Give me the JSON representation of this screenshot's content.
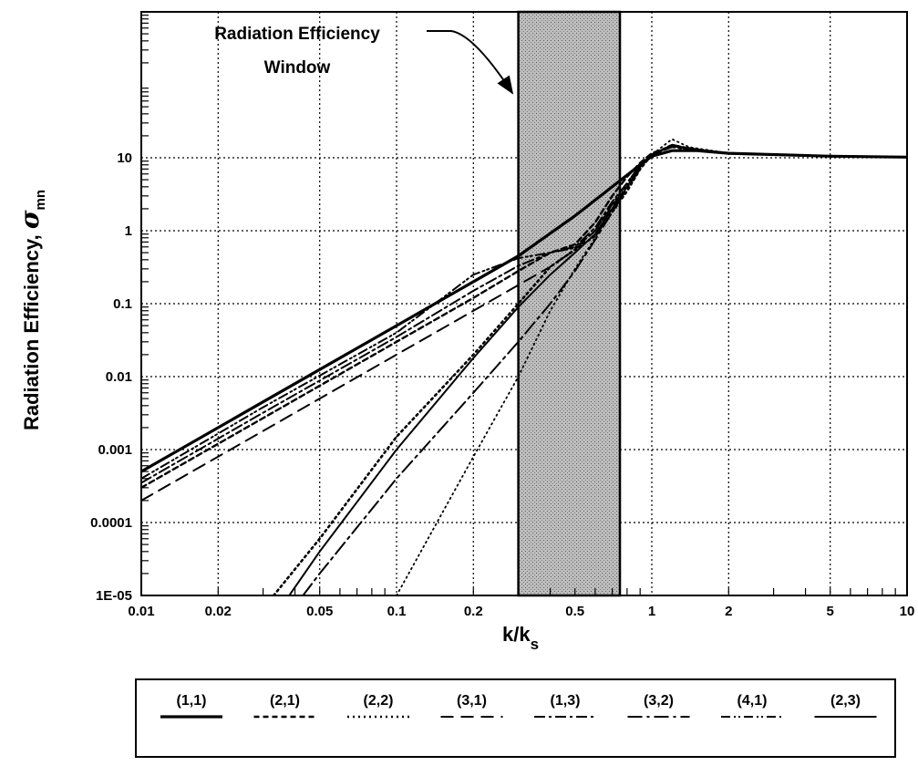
{
  "chart_data": {
    "type": "line",
    "title": "",
    "xlabel": "k/k",
    "xlabel_sub": "s",
    "ylabel": "Radiation Efficiency, ",
    "ylabel_symbol": "σ",
    "ylabel_sub": "mn",
    "x_scale": "log",
    "y_scale": "log",
    "xlim": [
      0.01,
      10
    ],
    "ylim": [
      1e-05,
      1000
    ],
    "grid": true,
    "x_ticks": [
      0.01,
      0.02,
      0.05,
      0.1,
      0.2,
      0.5,
      1,
      2,
      5,
      10
    ],
    "x_tick_labels": [
      "0.01",
      "0.02",
      "0.05",
      "0.1",
      "0.2",
      "0.5",
      "1",
      "2",
      "5",
      "10"
    ],
    "y_ticks": [
      1e-05,
      0.0001,
      0.001,
      0.01,
      0.1,
      1,
      10
    ],
    "y_tick_labels": [
      "1E-05",
      "0.0001",
      "0.001",
      "0.01",
      "0.1",
      "1",
      "10"
    ],
    "window": {
      "label_line1": "Radiation Efficiency",
      "label_line2": "Window",
      "x_range": [
        0.3,
        0.75
      ]
    },
    "legend_position": "bottom",
    "series": [
      {
        "name": "(1,1)",
        "style": "solid-thick",
        "x": [
          0.01,
          0.03,
          0.1,
          0.3,
          0.5,
          0.7,
          0.9,
          1.0,
          1.2,
          1.5,
          2,
          5,
          10
        ],
        "y": [
          0.0005,
          0.0045,
          0.05,
          0.45,
          1.6,
          4.0,
          8.0,
          10.5,
          12.5,
          12.5,
          11.5,
          10.5,
          10.2
        ]
      },
      {
        "name": "(2,1)",
        "style": "dashed-short",
        "x": [
          0.01,
          0.03,
          0.1,
          0.2,
          0.3,
          0.4,
          0.5,
          0.6,
          0.7,
          0.8,
          0.9,
          1.0,
          1.2,
          1.5,
          2,
          5,
          10
        ],
        "y": [
          0.0003,
          0.0027,
          0.03,
          0.12,
          0.28,
          0.5,
          0.65,
          1.3,
          3.0,
          5.5,
          8.5,
          11.5,
          14.5,
          13.0,
          11.5,
          10.5,
          10.2
        ]
      },
      {
        "name": "(2,2)",
        "style": "dotted",
        "x": [
          0.033,
          0.05,
          0.1,
          0.2,
          0.3,
          0.4,
          0.5,
          0.6,
          0.7,
          0.8,
          0.9,
          1.0,
          1.2,
          1.4,
          2,
          5,
          10
        ],
        "y": [
          1e-05,
          6e-05,
          0.0015,
          0.02,
          0.1,
          0.32,
          0.55,
          0.85,
          1.8,
          3.5,
          7.0,
          11.0,
          15.0,
          13.0,
          11.5,
          10.5,
          10.2
        ]
      },
      {
        "name": "(3,1)",
        "style": "dashed-long",
        "x": [
          0.01,
          0.03,
          0.1,
          0.2,
          0.3,
          0.4,
          0.5,
          0.6,
          0.7,
          0.8,
          0.9,
          1.0,
          1.2,
          1.5,
          2,
          5,
          10
        ],
        "y": [
          0.0002,
          0.0018,
          0.02,
          0.08,
          0.18,
          0.32,
          0.55,
          1.0,
          2.2,
          4.0,
          7.5,
          11.0,
          15.0,
          13.0,
          11.5,
          10.5,
          10.2
        ]
      },
      {
        "name": "(1,3)",
        "style": "dash-dot",
        "x": [
          0.01,
          0.03,
          0.1,
          0.2,
          0.3,
          0.4,
          0.5,
          0.6,
          0.7,
          0.8,
          0.9,
          1.0,
          1.2,
          1.5,
          2,
          5,
          10
        ],
        "y": [
          0.00035,
          0.0032,
          0.035,
          0.15,
          0.33,
          0.5,
          0.6,
          1.1,
          2.5,
          4.5,
          8.0,
          11.0,
          14.0,
          12.5,
          11.5,
          10.5,
          10.2
        ]
      },
      {
        "name": "(3,2)",
        "style": "dash-dot-long",
        "x": [
          0.043,
          0.05,
          0.1,
          0.2,
          0.3,
          0.4,
          0.5,
          0.6,
          0.7,
          0.8,
          0.9,
          1.0,
          1.2,
          1.4,
          2,
          5,
          10
        ],
        "y": [
          1e-05,
          2e-05,
          0.0004,
          0.006,
          0.03,
          0.1,
          0.28,
          0.75,
          1.8,
          3.8,
          7.0,
          11.0,
          15.0,
          13.0,
          11.5,
          10.5,
          10.2
        ]
      },
      {
        "name": "(4,1)",
        "style": "dash-dot-dot",
        "x": [
          0.01,
          0.03,
          0.1,
          0.2,
          0.3,
          0.4,
          0.5,
          0.6,
          0.7,
          0.8,
          0.9,
          1.0,
          1.2,
          1.5,
          2,
          5,
          10
        ],
        "y": [
          0.0004,
          0.0038,
          0.04,
          0.25,
          0.42,
          0.5,
          0.58,
          1.0,
          2.3,
          4.5,
          8.0,
          11.0,
          15.0,
          13.0,
          11.5,
          10.5,
          10.2
        ]
      },
      {
        "name": "(2,3)",
        "style": "solid",
        "x": [
          0.038,
          0.05,
          0.1,
          0.2,
          0.3,
          0.4,
          0.5,
          0.6,
          0.7,
          0.8,
          0.9,
          1.0,
          1.2,
          1.5,
          2,
          5,
          10
        ],
        "y": [
          1e-05,
          4e-05,
          0.001,
          0.018,
          0.09,
          0.25,
          0.5,
          0.9,
          2.0,
          4.0,
          7.5,
          11.0,
          14.5,
          13.0,
          11.5,
          10.5,
          10.2
        ]
      },
      {
        "name": "",
        "style": "dotted-thin",
        "x": [
          0.1,
          0.2,
          0.3,
          0.4,
          0.5,
          0.6,
          0.7,
          0.8,
          0.9,
          1.0,
          1.2,
          1.4,
          2,
          5,
          10
        ],
        "y": [
          1e-05,
          0.0008,
          0.01,
          0.08,
          0.3,
          0.8,
          2.0,
          4.2,
          7.5,
          11.0,
          18.0,
          14.0,
          11.5,
          10.5,
          10.2
        ]
      }
    ]
  }
}
